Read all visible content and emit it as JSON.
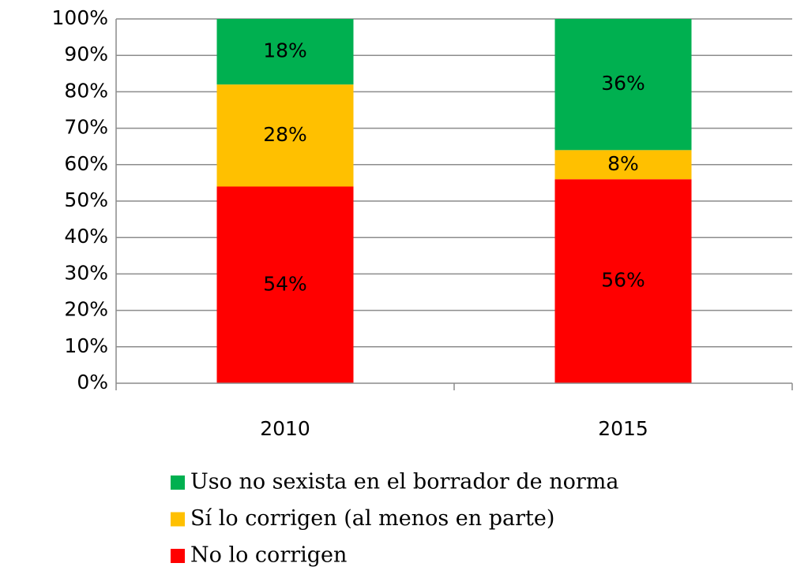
{
  "chart_data": {
    "type": "stacked_bar",
    "categories": [
      "2010",
      "2015"
    ],
    "series": [
      {
        "name": "No lo corrigen",
        "color": "#ff0000",
        "values": [
          54,
          56
        ],
        "value_labels": [
          "54%",
          "56%"
        ]
      },
      {
        "name": "Sí lo corrigen (al menos en parte)",
        "color": "#ffc000",
        "values": [
          28,
          8
        ],
        "value_labels": [
          "28%",
          "8%"
        ]
      },
      {
        "name": "Uso no sexista en el borrador de norma",
        "color": "#00b050",
        "values": [
          18,
          36
        ],
        "value_labels": [
          "18%",
          "36%"
        ]
      }
    ],
    "ylim": [
      0,
      100
    ],
    "yticks": [
      {
        "value": 0,
        "label": "0%"
      },
      {
        "value": 10,
        "label": "10%"
      },
      {
        "value": 20,
        "label": "20%"
      },
      {
        "value": 30,
        "label": "30%"
      },
      {
        "value": 40,
        "label": "40%"
      },
      {
        "value": 50,
        "label": "50%"
      },
      {
        "value": 60,
        "label": "60%"
      },
      {
        "value": 70,
        "label": "70%"
      },
      {
        "value": 80,
        "label": "80%"
      },
      {
        "value": 90,
        "label": "90%"
      },
      {
        "value": 100,
        "label": "100%"
      }
    ],
    "grid": true
  }
}
